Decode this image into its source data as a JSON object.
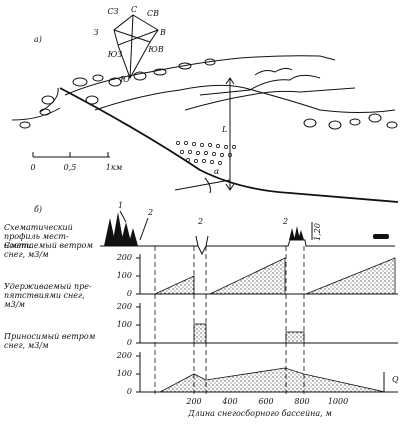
{
  "part_a": {
    "label": "а)",
    "compass": {
      "n": "С",
      "nw": "СЗ",
      "ne": "СВ",
      "w": "З",
      "e": "В",
      "sw": "ЮЗ",
      "se": "ЮВ",
      "s": "Ю"
    },
    "length_label": "L",
    "angle_label": "α",
    "scale": [
      "0",
      "0,5",
      "1км"
    ]
  },
  "part_b": {
    "label": "б)",
    "callouts": [
      "1",
      "2",
      "2",
      "2"
    ],
    "height_label": "1,20",
    "rows": [
      {
        "label": [
          "Схематический",
          "профиль мест-",
          "ности"
        ]
      },
      {
        "label": [
          "Сметаемый ветром",
          "снег, м3/м"
        ],
        "ticks": [
          200,
          100,
          0
        ]
      },
      {
        "label": [
          "Удерживаемый пре-",
          "пятствиями снег,",
          "м3/м"
        ],
        "ticks": [
          200,
          100,
          0
        ]
      },
      {
        "label": [
          "Приносимый ветром",
          "снег, м3/м"
        ],
        "ticks": [
          200,
          100,
          0
        ]
      }
    ],
    "x_ticks": [
      200,
      400,
      600,
      800,
      1000
    ],
    "x_label": "Длина снегосборного бассейна, м",
    "flow_label": "Q"
  }
}
